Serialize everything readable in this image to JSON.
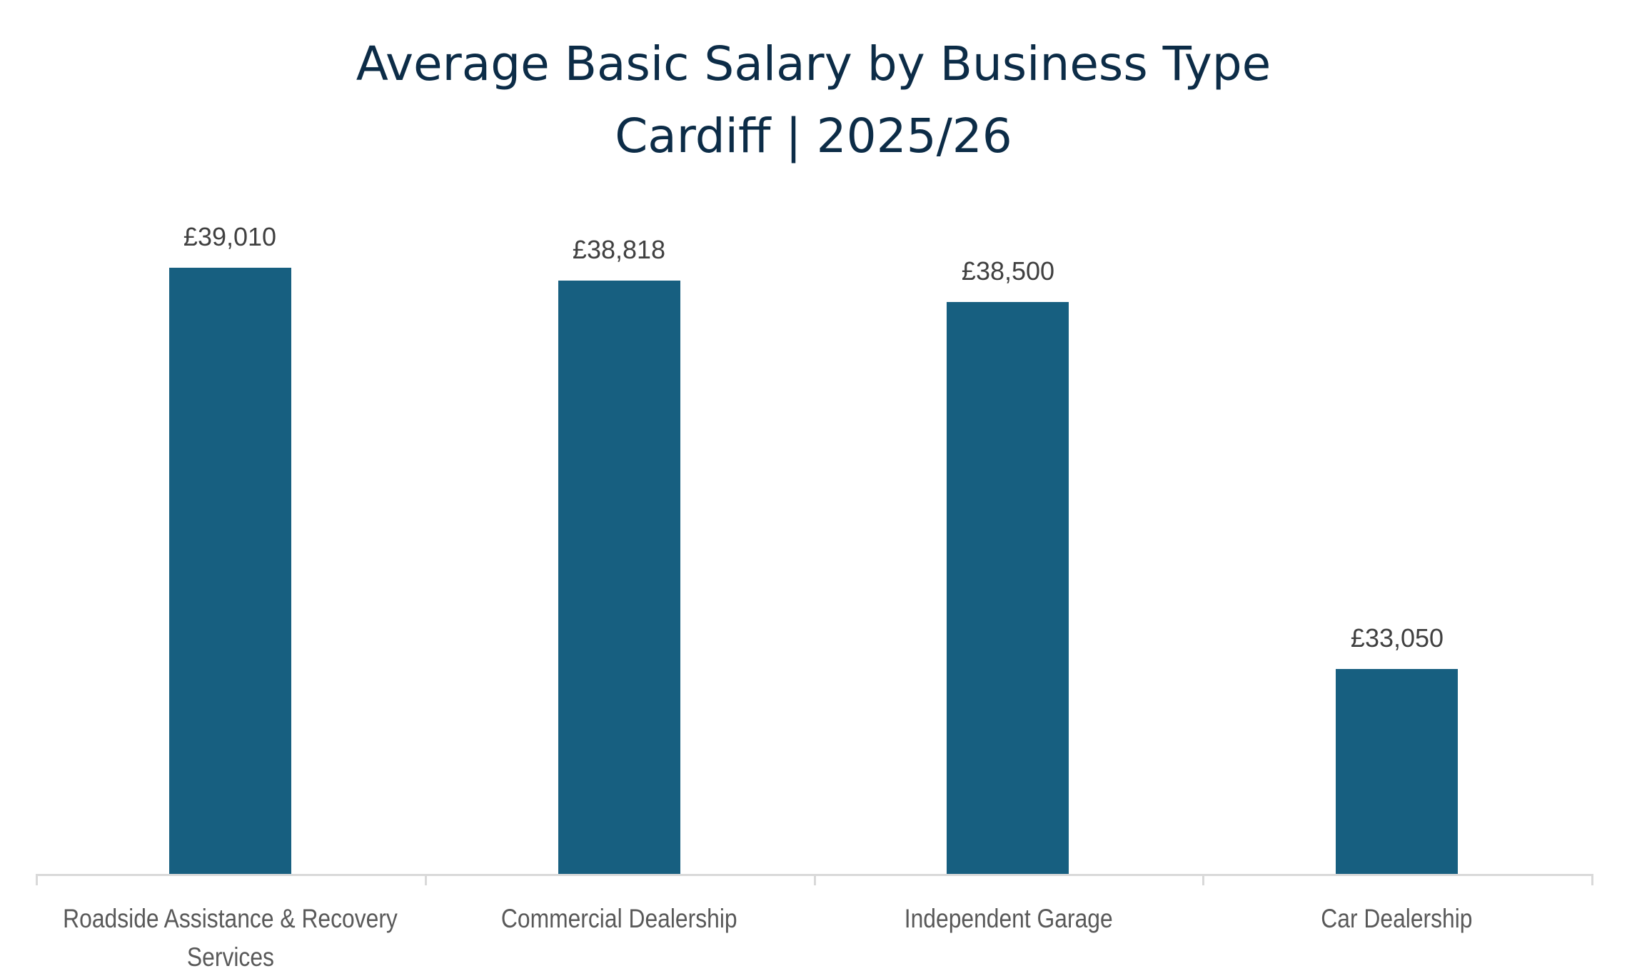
{
  "chart_data": {
    "type": "bar",
    "title": "Average Basic Salary by Business Type",
    "subtitle": "Cardiff | 2025/26",
    "categories": [
      "Roadside Assistance & Recovery Services",
      "Commercial Dealership",
      "Independent Garage",
      "Car Dealership"
    ],
    "category_label_lines": [
      [
        "Roadside Assistance & Recovery",
        "Services"
      ],
      [
        "Commercial Dealership"
      ],
      [
        "Independent Garage"
      ],
      [
        "Car Dealership"
      ]
    ],
    "values": [
      39010,
      38818,
      38500,
      33050
    ],
    "value_labels": [
      "£39,010",
      "£38,818",
      "£38,500",
      "£33,050"
    ],
    "xlabel": "",
    "ylabel": "",
    "ylim": [
      30000,
      40000
    ],
    "y_axis_visible": false,
    "grid": false,
    "legend": null,
    "data_labels": true,
    "currency": "GBP"
  },
  "colors": {
    "bar": "#175f80",
    "title": "#0c2c47",
    "axis": "#d9d9d9",
    "value_label": "#404040",
    "category_label": "#595959"
  },
  "header": {
    "title": "Average Basic Salary by Business Type",
    "subtitle": "Cardiff | 2025/26"
  }
}
